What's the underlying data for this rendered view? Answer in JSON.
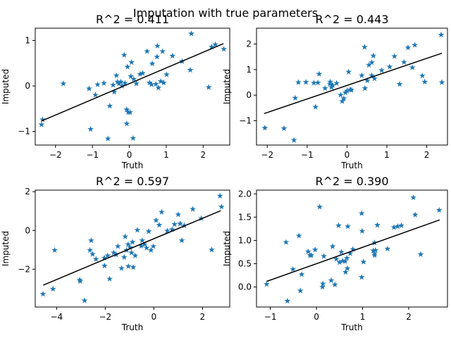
{
  "figure": {
    "suptitle": "Imputation with true parameters"
  },
  "colors": {
    "marker": "#1f77b4",
    "fit_line": "#000000"
  },
  "chart_data": [
    {
      "type": "scatter",
      "title": "R^2 = 0.411",
      "xlabel": "Truth",
      "ylabel": "Imputed",
      "xlim": [
        -2.55,
        2.72
      ],
      "ylim": [
        -1.3,
        1.27
      ],
      "xticks": [
        -2,
        -1,
        0,
        1,
        2
      ],
      "yticks": [
        -1,
        0,
        1
      ],
      "marker": "star",
      "fit_line": [
        [
          -2.38,
          -0.77
        ],
        [
          2.55,
          0.93
        ]
      ],
      "points": [
        [
          -2.38,
          -0.85
        ],
        [
          -2.35,
          -0.74
        ],
        [
          -1.79,
          0.05
        ],
        [
          -1.09,
          -0.06
        ],
        [
          -1.05,
          -0.95
        ],
        [
          -0.92,
          -0.2
        ],
        [
          -0.86,
          0.03
        ],
        [
          -0.69,
          0.06
        ],
        [
          -0.58,
          -1.16
        ],
        [
          -0.53,
          -0.44
        ],
        [
          -0.44,
          0.02
        ],
        [
          -0.41,
          -0.13
        ],
        [
          -0.35,
          0.23
        ],
        [
          -0.32,
          0.09
        ],
        [
          -0.28,
          0.05
        ],
        [
          -0.23,
          0.09
        ],
        [
          -0.2,
          0.0
        ],
        [
          -0.14,
          0.68
        ],
        [
          -0.12,
          0.06
        ],
        [
          -0.07,
          -0.52
        ],
        [
          -0.07,
          -0.83
        ],
        [
          -0.05,
          0.42
        ],
        [
          -0.03,
          -0.58
        ],
        [
          0.02,
          -0.58
        ],
        [
          0.04,
          0.21
        ],
        [
          0.06,
          0.52
        ],
        [
          0.1,
          -1.15
        ],
        [
          0.12,
          0.15
        ],
        [
          0.19,
          0.05
        ],
        [
          0.29,
          0.26
        ],
        [
          0.36,
          0.28
        ],
        [
          0.48,
          0.76
        ],
        [
          0.55,
          0.07
        ],
        [
          0.6,
          0.03
        ],
        [
          0.62,
          0.49
        ],
        [
          0.72,
          0.04
        ],
        [
          0.75,
          0.64
        ],
        [
          0.76,
          0.88
        ],
        [
          0.79,
          -0.04
        ],
        [
          0.85,
          0.1
        ],
        [
          0.9,
          0.76
        ],
        [
          0.93,
          0.07
        ],
        [
          1.01,
          0.25
        ],
        [
          1.17,
          0.66
        ],
        [
          1.43,
          0.54
        ],
        [
          1.65,
          0.35
        ],
        [
          1.68,
          1.15
        ],
        [
          2.15,
          -0.03
        ],
        [
          2.23,
          0.86
        ],
        [
          2.33,
          0.91
        ],
        [
          2.56,
          0.81
        ]
      ]
    },
    {
      "type": "scatter",
      "title": "R^2 = 0.443",
      "xlabel": "Truth",
      "ylabel": "Imputed",
      "xlim": [
        -2.27,
        2.52
      ],
      "ylim": [
        -1.95,
        2.62
      ],
      "xticks": [
        -2,
        -1,
        0,
        1,
        2
      ],
      "yticks": [
        -1,
        0,
        1,
        2
      ],
      "marker": "star",
      "fit_line": [
        [
          -2.08,
          -0.72
        ],
        [
          2.38,
          1.64
        ]
      ],
      "points": [
        [
          -2.06,
          -1.28
        ],
        [
          -1.58,
          -1.3
        ],
        [
          -1.33,
          -1.76
        ],
        [
          -1.3,
          -0.11
        ],
        [
          -1.22,
          0.5
        ],
        [
          -1.03,
          0.51
        ],
        [
          -0.83,
          0.48
        ],
        [
          -0.79,
          -0.46
        ],
        [
          -0.73,
          0.49
        ],
        [
          -0.7,
          0.83
        ],
        [
          -0.55,
          0.27
        ],
        [
          -0.43,
          0.44
        ],
        [
          -0.42,
          0.52
        ],
        [
          -0.39,
          0.31
        ],
        [
          -0.36,
          0.39
        ],
        [
          -0.26,
          0.47
        ],
        [
          -0.16,
          0.01
        ],
        [
          -0.12,
          -0.24
        ],
        [
          -0.08,
          -0.13
        ],
        [
          -0.04,
          0.1
        ],
        [
          0.0,
          0.17
        ],
        [
          0.04,
          0.91
        ],
        [
          0.08,
          0.22
        ],
        [
          0.11,
          0.2
        ],
        [
          0.37,
          0.77
        ],
        [
          0.44,
          1.88
        ],
        [
          0.45,
          0.27
        ],
        [
          0.51,
          0.57
        ],
        [
          0.55,
          1.18
        ],
        [
          0.62,
          1.28
        ],
        [
          0.62,
          0.77
        ],
        [
          0.66,
          1.54
        ],
        [
          0.69,
          0.65
        ],
        [
          0.87,
          0.97
        ],
        [
          1.07,
          1.11
        ],
        [
          1.19,
          1.52
        ],
        [
          1.32,
          0.43
        ],
        [
          1.43,
          1.29
        ],
        [
          1.53,
          1.86
        ],
        [
          1.64,
          1.08
        ],
        [
          1.7,
          1.96
        ],
        [
          1.89,
          0.76
        ],
        [
          1.95,
          0.52
        ],
        [
          2.36,
          2.36
        ],
        [
          2.38,
          0.5
        ]
      ]
    },
    {
      "type": "scatter",
      "title": "R^2 = 0.597",
      "xlabel": "Truth",
      "ylabel": "Imputed",
      "xlim": [
        -4.88,
        3.12
      ],
      "ylim": [
        -3.95,
        2.08
      ],
      "xticks": [
        -4,
        -2,
        0,
        2
      ],
      "yticks": [
        -2,
        0,
        2
      ],
      "marker": "star",
      "fit_line": [
        [
          -4.55,
          -2.82
        ],
        [
          2.75,
          1.02
        ]
      ],
      "points": [
        [
          -4.56,
          -3.28
        ],
        [
          -4.15,
          -3.02
        ],
        [
          -4.08,
          -1.02
        ],
        [
          -3.05,
          -2.55
        ],
        [
          -3.03,
          -2.62
        ],
        [
          -2.85,
          -3.62
        ],
        [
          -2.63,
          -1.02
        ],
        [
          -2.58,
          -0.52
        ],
        [
          -2.52,
          -1.22
        ],
        [
          -2.38,
          -1.48
        ],
        [
          -2.04,
          -1.42
        ],
        [
          -2.03,
          -1.82
        ],
        [
          -1.9,
          -1.3
        ],
        [
          -1.82,
          -2.5
        ],
        [
          -1.65,
          -1.15
        ],
        [
          -1.55,
          -1.25
        ],
        [
          -1.48,
          -0.82
        ],
        [
          -1.33,
          -1.95
        ],
        [
          -1.22,
          -1.38
        ],
        [
          -1.18,
          -0.32
        ],
        [
          -1.12,
          -1.02
        ],
        [
          -1.06,
          -0.72
        ],
        [
          -1.05,
          -1.85
        ],
        [
          -0.98,
          -0.88
        ],
        [
          -0.92,
          -1.15
        ],
        [
          -0.88,
          -0.6
        ],
        [
          -0.85,
          -1.9
        ],
        [
          -0.77,
          -1.3
        ],
        [
          -0.68,
          0.02
        ],
        [
          -0.52,
          -0.8
        ],
        [
          -0.48,
          -0.52
        ],
        [
          -0.38,
          -0.72
        ],
        [
          -0.3,
          -0.9
        ],
        [
          -0.21,
          -0.05
        ],
        [
          -0.12,
          -1.02
        ],
        [
          -0.02,
          -0.82
        ],
        [
          0.09,
          0.52
        ],
        [
          0.22,
          0.28
        ],
        [
          0.32,
          0.95
        ],
        [
          0.55,
          -0.02
        ],
        [
          0.75,
          0.05
        ],
        [
          0.85,
          0.32
        ],
        [
          1.0,
          0.82
        ],
        [
          1.08,
          0.35
        ],
        [
          1.15,
          -0.52
        ],
        [
          1.25,
          0.25
        ],
        [
          1.6,
          1.1
        ],
        [
          1.95,
          0.62
        ],
        [
          2.38,
          -1.0
        ],
        [
          2.72,
          1.78
        ],
        [
          2.78,
          1.22
        ]
      ]
    },
    {
      "type": "scatter",
      "title": "R^2 = 0.390",
      "xlabel": "Truth",
      "ylabel": "Imputed",
      "xlim": [
        -1.3,
        2.84
      ],
      "ylim": [
        -0.43,
        2.08
      ],
      "xticks": [
        -1,
        0,
        1,
        2
      ],
      "yticks": [
        0.0,
        0.5,
        1.0,
        1.5,
        2.0
      ],
      "marker": "star",
      "fit_line": [
        [
          -1.08,
          0.12
        ],
        [
          2.67,
          1.44
        ]
      ],
      "points": [
        [
          -1.08,
          0.06
        ],
        [
          -0.66,
          0.96
        ],
        [
          -0.63,
          -0.3
        ],
        [
          -0.51,
          0.38
        ],
        [
          -0.38,
          1.1
        ],
        [
          -0.35,
          -0.08
        ],
        [
          -0.32,
          0.27
        ],
        [
          -0.18,
          0.76
        ],
        [
          -0.14,
          0.68
        ],
        [
          -0.11,
          0.68
        ],
        [
          -0.03,
          0.8
        ],
        [
          0.07,
          1.72
        ],
        [
          0.13,
          0.0
        ],
        [
          0.14,
          0.07
        ],
        [
          0.16,
          0.66
        ],
        [
          0.32,
          0.14
        ],
        [
          0.35,
          0.87
        ],
        [
          0.4,
          0.05
        ],
        [
          0.43,
          0.6
        ],
        [
          0.48,
          1.32
        ],
        [
          0.5,
          0.53
        ],
        [
          0.54,
          0.75
        ],
        [
          0.57,
          0.56
        ],
        [
          0.62,
          0.55
        ],
        [
          0.63,
          0.32
        ],
        [
          0.66,
          0.62
        ],
        [
          0.67,
          0.4
        ],
        [
          0.68,
          1.3
        ],
        [
          0.73,
          0.72
        ],
        [
          0.79,
          0.81
        ],
        [
          0.98,
          1.58
        ],
        [
          0.98,
          0.21
        ],
        [
          0.99,
          1.2
        ],
        [
          1.02,
          0.54
        ],
        [
          1.23,
          0.78
        ],
        [
          1.26,
          0.72
        ],
        [
          1.26,
          0.95
        ],
        [
          1.26,
          0.68
        ],
        [
          1.28,
          0.79
        ],
        [
          1.32,
          1.33
        ],
        [
          1.54,
          0.82
        ],
        [
          1.68,
          1.28
        ],
        [
          1.76,
          1.3
        ],
        [
          1.84,
          1.32
        ],
        [
          2.1,
          1.92
        ],
        [
          2.14,
          1.55
        ],
        [
          2.26,
          0.7
        ],
        [
          2.66,
          1.65
        ]
      ]
    }
  ]
}
